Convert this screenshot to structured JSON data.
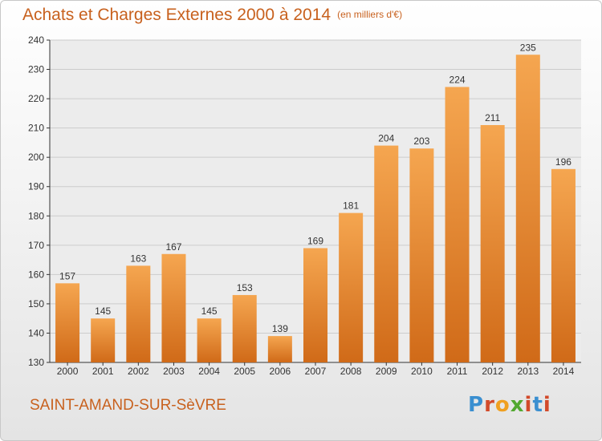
{
  "chart_data": {
    "type": "bar",
    "title": "Achats et Charges Externes 2000 à 2014",
    "subtitle": "(en milliers d'€)",
    "categories": [
      "2000",
      "2001",
      "2002",
      "2003",
      "2004",
      "2005",
      "2006",
      "2007",
      "2008",
      "2009",
      "2010",
      "2011",
      "2012",
      "2013",
      "2014"
    ],
    "values": [
      157,
      145,
      163,
      167,
      145,
      153,
      139,
      169,
      181,
      204,
      203,
      224,
      211,
      235,
      196
    ],
    "xlabel": "",
    "ylabel": "",
    "ylim": [
      130,
      240
    ],
    "yticks": [
      130,
      140,
      150,
      160,
      170,
      180,
      190,
      200,
      210,
      220,
      230,
      240
    ],
    "grid": true,
    "legend": "none",
    "bar_color_top": "#f5a650",
    "bar_color_bottom": "#d06a18"
  },
  "footer": {
    "location": "SAINT-AMAND-SUR-SèVRE"
  },
  "logo": {
    "text": "Proxiti",
    "letter_colors": [
      "#3a8fd0",
      "#d24a2a",
      "#f0a020",
      "#52a830",
      "#d24a2a",
      "#3a8fd0",
      "#d24a2a"
    ]
  },
  "colors": {
    "title": "#c8611e",
    "axis": "#333333",
    "grid": "#cccccc"
  }
}
